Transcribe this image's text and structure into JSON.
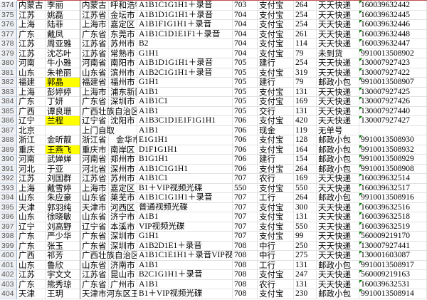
{
  "colors": {
    "highlight": "#ffff00",
    "comment_marker": "#008000",
    "header_line": "#c0504d"
  },
  "rows": [
    {
      "n": "374",
      "prov": "内蒙古",
      "name": "李丽",
      "area": "内蒙古",
      "city": "呼和浩特",
      "product": "A1B1C1G1H1＋录音",
      "code": "703",
      "pay": "支付宝",
      "amt": "264",
      "ship": "天天快递",
      "track": "160039632442"
    },
    {
      "n": "375",
      "prov": "江苏",
      "name": "姚磊",
      "area": "江苏省",
      "city": "金坛市",
      "product": "A1B1D1G1H1＋录音",
      "code": "704",
      "pay": "支付宝",
      "amt": "254",
      "ship": "天天快递",
      "track": "160039632445"
    },
    {
      "n": "376",
      "prov": "上海",
      "name": "陆菲",
      "area": "上海市",
      "city": "嘉定区",
      "product": "A1B1F1G1H1＋录音",
      "code": "704",
      "pay": "支付宝",
      "amt": "254",
      "ship": "天天快递",
      "track": "160039632446"
    },
    {
      "n": "377",
      "prov": "广东",
      "name": "戴凤",
      "area": "广东省",
      "city": "东莞市",
      "product": "A1B1C1D1E1F1＋录音",
      "code": "704",
      "pay": "支付宝",
      "amt": "261",
      "ship": "天天快递",
      "track": "160039632448"
    },
    {
      "n": "378",
      "prov": "江苏",
      "name": "周亚雅",
      "area": "江苏省",
      "city": "苏州市",
      "product": "B2",
      "code": "704",
      "pay": "支付宝",
      "amt": "114",
      "ship": "天天快递",
      "track": "160039632447"
    },
    {
      "n": "379",
      "prov": "江苏",
      "name": "沈芯叶",
      "area": "江苏省",
      "city": "常熟市",
      "product": "G1H1",
      "code": "704",
      "pay": "支付宝",
      "amt": "79",
      "ship": "未到货",
      "track": "9910013508902"
    },
    {
      "n": "380",
      "prov": "河南",
      "name": "牛小雅",
      "area": "河南省",
      "city": "南阳市",
      "product": "A1B1D1G1H1＋录音",
      "code": "705",
      "pay": "建行",
      "amt": "254",
      "ship": "天天快递",
      "track": "130007927423"
    },
    {
      "n": "381",
      "prov": "山东",
      "name": "朱艳丽",
      "area": "山东省",
      "city": "滨州市",
      "product": "A1B2C1G1H1＋录音",
      "code": "705",
      "pay": "支付宝",
      "amt": "319",
      "ship": "天天快递",
      "track": "130007927422"
    },
    {
      "n": "382",
      "prov": "福建",
      "name": "郭晶",
      "area": "福建省",
      "city": "福州市",
      "product": "G1H1",
      "code": "705",
      "pay": "建行",
      "amt": "79",
      "ship": "邮政小包",
      "track": "9910013508907",
      "hl": true
    },
    {
      "n": "383",
      "prov": "上海",
      "name": "彭婷婷",
      "area": "上海市",
      "city": "浦东新区",
      "product": "A1B1",
      "code": "705",
      "pay": "支付宝",
      "amt": "131",
      "ship": "天天快递",
      "track": "130007927425"
    },
    {
      "n": "384",
      "prov": "广东",
      "name": "丁妍",
      "area": "广东省",
      "city": "深圳市",
      "product": "A1B1C1",
      "code": "705",
      "pay": "支付宝",
      "amt": "169",
      "ship": "天天快递",
      "track": "130007927426"
    },
    {
      "n": "385",
      "prov": "广西",
      "name": "谭良珊",
      "area": "广西壮族自治区",
      "city": "",
      "product": "A1B1",
      "code": "705",
      "pay": "交行",
      "amt": "131",
      "ship": "天天快递",
      "track": "130007927440"
    },
    {
      "n": "386",
      "prov": "辽宁",
      "name": "兰程",
      "area": "辽宁省",
      "city": "沈阳市",
      "product": "A1B3C1D1E1F1G1H1",
      "code": "706",
      "pay": "支付宝",
      "amt": "420",
      "ship": "天天快递",
      "track": "130007927427",
      "hl": true
    },
    {
      "n": "387",
      "prov": "北京",
      "name": "",
      "area": "上门自取",
      "city": "",
      "product": "A1B1",
      "code": "706",
      "pay": "现金",
      "amt": "119",
      "ship": "无单号",
      "track": ""
    },
    {
      "n": "388",
      "prov": "浙江",
      "name": "金昕靓",
      "area": "浙江省",
      "city": "金华市",
      "product": "E1G1H1",
      "code": "706",
      "pay": "支付宝",
      "amt": "128",
      "ship": "邮政小包",
      "track": "9910013508930"
    },
    {
      "n": "389",
      "prov": "重庆",
      "name": "王燕飞",
      "area": "重庆市",
      "city": "南岸区",
      "product": "D1F1G1H1",
      "code": "706",
      "pay": "支付宝",
      "amt": "164",
      "ship": "邮政小包",
      "track": "9910013508932",
      "hl": true
    },
    {
      "n": "390",
      "prov": "河南",
      "name": "武婵婵",
      "area": "河南省",
      "city": "郑州市",
      "product": "B1G1H1",
      "code": "706",
      "pay": "建行",
      "amt": "154",
      "ship": "邮政小包",
      "track": "9910013508929"
    },
    {
      "n": "391",
      "prov": "河北",
      "name": "于亚",
      "area": "河北省",
      "city": "深州市",
      "product": "A1B1C1G1H1",
      "code": "706",
      "pay": "支付宝",
      "amt": "264",
      "ship": "邮政小包",
      "track": "9910013508908"
    },
    {
      "n": "392",
      "prov": "江苏",
      "name": "刘国群",
      "area": "江苏省",
      "city": "苏州市",
      "product": "A1B1C1",
      "code": "707",
      "pay": "农行",
      "amt": "169",
      "ship": "天天快递",
      "track": "160039632514"
    },
    {
      "n": "393",
      "prov": "上海",
      "name": "戴雪婷",
      "area": "上海市",
      "city": "嘉定区",
      "product": "B1＋VIP视频光碟",
      "code": "550",
      "pay": "支付宝",
      "amt": "550",
      "ship": "天天快递",
      "track": "160039632517"
    },
    {
      "n": "394",
      "prov": "山东",
      "name": "朱应豪",
      "area": "山东省",
      "city": "莱芜市",
      "product": "A1B1C1G1H1＋录音",
      "code": "707",
      "pay": "工行",
      "amt": "264",
      "ship": "邮政小包",
      "track": "9910013508916"
    },
    {
      "n": "395",
      "prov": "天津",
      "name": "郭羽纯",
      "area": "天津市",
      "city": "河西区",
      "product": "普通视频光碟",
      "code": "707",
      "pay": "支付宝",
      "amt": "300",
      "ship": "天天快递",
      "track": "160039632516"
    },
    {
      "n": "396",
      "prov": "山东",
      "name": "徐晓敏",
      "area": "山东省",
      "city": "济宁市",
      "product": "A1B1",
      "code": "707",
      "pay": "支付宝",
      "amt": "131",
      "ship": "天天快递",
      "track": "160039632518"
    },
    {
      "n": "397",
      "prov": "辽宁",
      "name": "刘高野",
      "area": "辽宁省",
      "city": "本溪市",
      "product": "VIP视频光碟",
      "code": "707",
      "pay": "支付宝",
      "amt": "550",
      "ship": "天天快递",
      "track": "160039632519"
    },
    {
      "n": "398",
      "prov": "广东",
      "name": "严少华",
      "area": "广东省",
      "city": "深圳市",
      "product": "G1H1",
      "code": "707",
      "pay": "支付宝",
      "amt": "99",
      "ship": "天天快递",
      "track": "560009219170"
    },
    {
      "n": "399",
      "prov": "广东",
      "name": "张玉",
      "area": "广东省",
      "city": "深圳市",
      "product": "A1B2D1E1＋录音",
      "code": "708",
      "pay": "中行",
      "amt": "250",
      "ship": "天天快递",
      "track": "130007927441"
    },
    {
      "n": "400",
      "prov": "广西",
      "name": "祁芳",
      "area": "广西壮族自治区",
      "city": "",
      "product": "A1B1C1E1H1＋录音VIP视频",
      "code": "708",
      "pay": "中行",
      "amt": "275",
      "ship": "天天快递",
      "track": "130001603087"
    },
    {
      "n": "401",
      "prov": "山东",
      "name": "鲁欣",
      "area": "山东省",
      "city": "济南市",
      "product": "A1B1",
      "code": "708",
      "pay": "工行",
      "amt": "131",
      "ship": "邮政小包",
      "track": "9910013508917"
    },
    {
      "n": "402",
      "prov": "江苏",
      "name": "宇文文",
      "area": "江苏省",
      "city": "昆山市",
      "product": "B2C1G1H1＋录音",
      "code": "708",
      "pay": "支付宝",
      "amt": "247",
      "ship": "天天快递",
      "track": "560009219163"
    },
    {
      "n": "403",
      "prov": "广东",
      "name": "熊秀琼",
      "area": "广东省",
      "city": "广州市",
      "product": "A1B1",
      "code": "708",
      "pay": "农行",
      "amt": "131",
      "ship": "天天快递",
      "track": "160039632531"
    },
    {
      "n": "404",
      "prov": "天津",
      "name": "王玥",
      "area": "天津市河东区王",
      "city": "",
      "product": "B1＋VIP视频光碟",
      "code": "708",
      "pay": "支付宝",
      "amt": "230",
      "ship": "邮政小包",
      "track": "9910013508914"
    }
  ]
}
